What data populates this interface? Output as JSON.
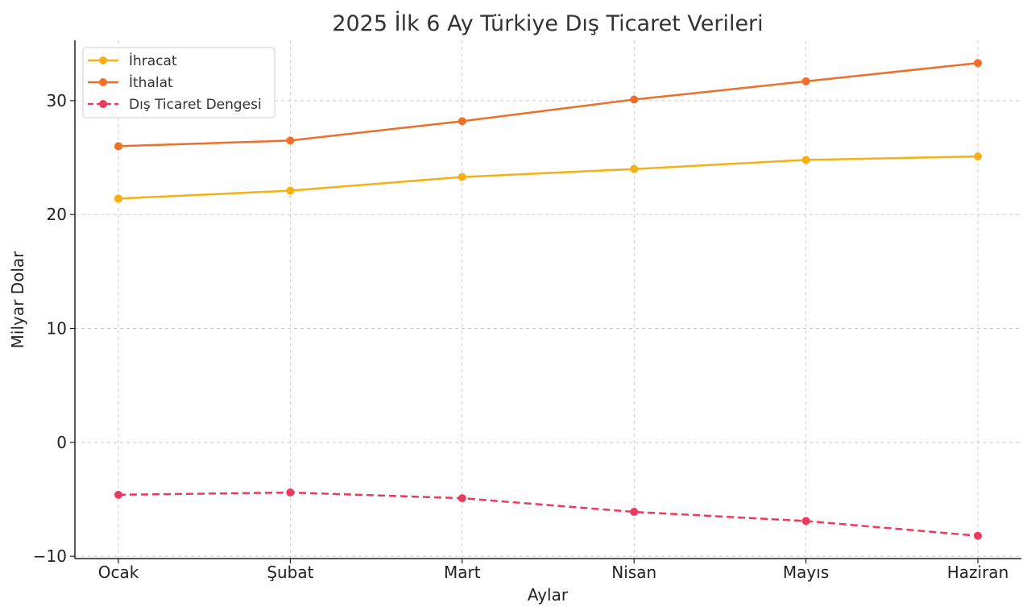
{
  "chart_data": {
    "type": "line",
    "title": "2025 İlk 6 Ay Türkiye Dış Ticaret Verileri",
    "xlabel": "Aylar",
    "ylabel": "Milyar Dolar",
    "categories": [
      "Ocak",
      "Şubat",
      "Mart",
      "Nisan",
      "Mayıs",
      "Haziran"
    ],
    "ylim": [
      -10.2,
      35.3
    ],
    "yticks": [
      -10,
      0,
      10,
      20,
      30
    ],
    "ytick_labels": [
      "−10",
      "0",
      "10",
      "20",
      "30"
    ],
    "grid": true,
    "legend_position": "top-left",
    "series": [
      {
        "name": "İhracat",
        "values": [
          21.4,
          22.1,
          23.3,
          24.0,
          24.8,
          25.1
        ],
        "color": "#f5b015",
        "dash": "solid"
      },
      {
        "name": "İthalat",
        "values": [
          26.0,
          26.5,
          28.2,
          30.1,
          31.7,
          33.3
        ],
        "color": "#ed6f2a",
        "dash": "solid"
      },
      {
        "name": "Dış Ticaret Dengesi",
        "values": [
          -4.6,
          -4.4,
          -4.9,
          -6.1,
          -6.9,
          -8.2
        ],
        "color": "#ea3a5d",
        "dash": "dashed"
      }
    ]
  }
}
